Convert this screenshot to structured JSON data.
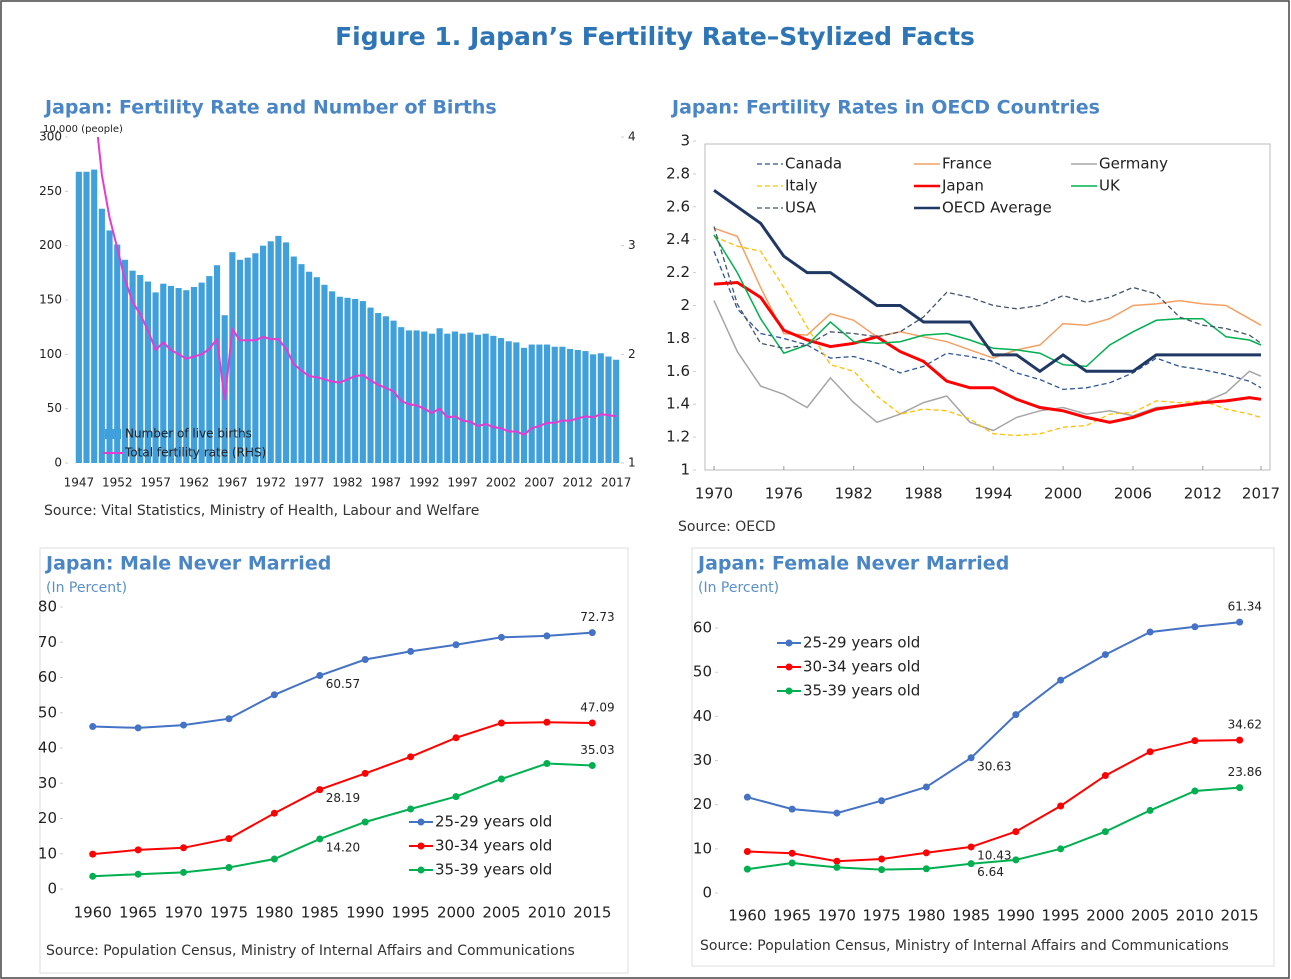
{
  "title": "Figure 1. Japan’s Fertility Rate–Stylized Facts",
  "chart_data": [
    {
      "type": "combo",
      "title": "Japan: Fertility Rate and Number of Births",
      "annotation": "10,000 (people)",
      "categories": [
        "1947",
        null,
        null,
        null,
        null,
        "1952",
        null,
        null,
        null,
        null,
        "1957",
        null,
        null,
        null,
        null,
        "1962",
        null,
        null,
        null,
        null,
        "1967",
        null,
        null,
        null,
        null,
        "1972",
        null,
        null,
        null,
        null,
        "1977",
        null,
        null,
        null,
        null,
        "1982",
        null,
        null,
        null,
        null,
        "1987",
        null,
        null,
        null,
        null,
        "1992",
        null,
        null,
        null,
        null,
        "1997",
        null,
        null,
        null,
        null,
        "2002",
        null,
        null,
        null,
        null,
        "2007",
        null,
        null,
        null,
        null,
        "2012",
        null,
        null,
        null,
        null,
        "2017"
      ],
      "series": [
        {
          "name": "Number of live births",
          "type": "bar",
          "color": "#3fa0dc",
          "values": [
            268,
            268,
            270,
            234,
            214,
            201,
            187,
            177,
            173,
            167,
            157,
            165,
            163,
            161,
            159,
            162,
            166,
            172,
            182,
            136,
            194,
            187,
            189,
            193,
            200,
            204,
            209,
            203,
            190,
            183,
            176,
            171,
            164,
            158,
            153,
            152,
            151,
            149,
            143,
            138,
            135,
            131,
            125,
            122,
            122,
            121,
            119,
            124,
            119,
            121,
            119,
            120,
            118,
            119,
            117,
            115,
            112,
            111,
            106,
            109,
            109,
            109,
            107,
            107,
            105,
            104,
            103,
            100,
            101,
            98,
            95
          ]
        },
        {
          "name": "Total fertility rate (RHS)",
          "type": "line",
          "axis": "y2",
          "color": "#e83ad0",
          "values": [
            4.54,
            4.4,
            4.32,
            3.65,
            3.26,
            2.98,
            2.69,
            2.48,
            2.37,
            2.22,
            2.04,
            2.11,
            2.04,
            2.0,
            1.96,
            1.98,
            2.0,
            2.05,
            2.14,
            1.58,
            2.23,
            2.13,
            2.13,
            2.13,
            2.16,
            2.14,
            2.14,
            2.05,
            1.91,
            1.85,
            1.8,
            1.79,
            1.77,
            1.75,
            1.74,
            1.77,
            1.8,
            1.81,
            1.76,
            1.72,
            1.69,
            1.66,
            1.57,
            1.54,
            1.53,
            1.5,
            1.46,
            1.5,
            1.42,
            1.43,
            1.39,
            1.38,
            1.34,
            1.36,
            1.33,
            1.32,
            1.29,
            1.29,
            1.26,
            1.32,
            1.34,
            1.37,
            1.37,
            1.39,
            1.39,
            1.41,
            1.43,
            1.42,
            1.45,
            1.44,
            1.43
          ]
        }
      ],
      "ylim": [
        0,
        300
      ],
      "yticks": [
        0,
        50,
        100,
        150,
        200,
        250,
        300
      ],
      "y2lim": [
        1,
        4
      ],
      "y2ticks": [
        1,
        2,
        3,
        4
      ],
      "source": "Source: Vital Statistics, Ministry of Health, Labour and Welfare"
    },
    {
      "type": "line",
      "title": "Japan: Fertility Rates in OECD Countries",
      "x": [
        1970,
        1972,
        1974,
        1976,
        1978,
        1980,
        1982,
        1984,
        1986,
        1988,
        1990,
        1992,
        1994,
        1996,
        1998,
        2000,
        2002,
        2004,
        2006,
        2008,
        2010,
        2012,
        2014,
        2016,
        2017
      ],
      "series": [
        {
          "name": "Canada",
          "color": "#2f5597",
          "dash": true,
          "width": 1.3,
          "values": [
            2.33,
            1.98,
            1.83,
            1.8,
            1.76,
            1.68,
            1.69,
            1.65,
            1.59,
            1.63,
            1.71,
            1.69,
            1.66,
            1.59,
            1.55,
            1.49,
            1.5,
            1.53,
            1.59,
            1.68,
            1.63,
            1.61,
            1.58,
            1.54,
            1.5
          ]
        },
        {
          "name": "France",
          "color": "#f4a064",
          "dash": false,
          "width": 1.5,
          "values": [
            2.47,
            2.42,
            2.11,
            1.83,
            1.82,
            1.95,
            1.91,
            1.81,
            1.84,
            1.81,
            1.78,
            1.73,
            1.68,
            1.73,
            1.76,
            1.89,
            1.88,
            1.92,
            2.0,
            2.01,
            2.03,
            2.01,
            2.0,
            1.92,
            1.88
          ]
        },
        {
          "name": "Germany",
          "color": "#a6a6a6",
          "dash": false,
          "width": 1.5,
          "values": [
            2.03,
            1.72,
            1.51,
            1.46,
            1.38,
            1.56,
            1.41,
            1.29,
            1.34,
            1.41,
            1.45,
            1.29,
            1.24,
            1.32,
            1.36,
            1.38,
            1.34,
            1.36,
            1.33,
            1.38,
            1.39,
            1.41,
            1.47,
            1.6,
            1.57
          ]
        },
        {
          "name": "Italy",
          "color": "#ffc000",
          "dash": true,
          "width": 1.3,
          "values": [
            2.42,
            2.36,
            2.33,
            2.11,
            1.87,
            1.64,
            1.6,
            1.45,
            1.34,
            1.37,
            1.36,
            1.31,
            1.22,
            1.21,
            1.22,
            1.26,
            1.27,
            1.34,
            1.35,
            1.42,
            1.41,
            1.42,
            1.37,
            1.34,
            1.32
          ]
        },
        {
          "name": "Japan",
          "color": "#ff0000",
          "dash": false,
          "width": 3,
          "values": [
            2.13,
            2.14,
            2.05,
            1.85,
            1.79,
            1.75,
            1.77,
            1.81,
            1.72,
            1.66,
            1.54,
            1.5,
            1.5,
            1.43,
            1.38,
            1.36,
            1.32,
            1.29,
            1.32,
            1.37,
            1.39,
            1.41,
            1.42,
            1.44,
            1.43
          ]
        },
        {
          "name": "UK",
          "color": "#00b050",
          "dash": false,
          "width": 1.5,
          "values": [
            2.43,
            2.2,
            1.92,
            1.71,
            1.76,
            1.9,
            1.78,
            1.77,
            1.78,
            1.82,
            1.83,
            1.79,
            1.74,
            1.73,
            1.71,
            1.64,
            1.63,
            1.76,
            1.84,
            1.91,
            1.92,
            1.92,
            1.81,
            1.79,
            1.76
          ]
        },
        {
          "name": "USA",
          "color": "#44546a",
          "dash": true,
          "width": 1.3,
          "values": [
            2.48,
            2.01,
            1.77,
            1.74,
            1.76,
            1.84,
            1.83,
            1.81,
            1.84,
            1.93,
            2.08,
            2.05,
            2.0,
            1.98,
            2.0,
            2.06,
            2.02,
            2.05,
            2.11,
            2.07,
            1.93,
            1.88,
            1.86,
            1.82,
            1.77
          ]
        },
        {
          "name": "OECD Average",
          "color": "#1f3864",
          "dash": false,
          "width": 3,
          "values": [
            2.7,
            2.6,
            2.5,
            2.3,
            2.2,
            2.2,
            2.1,
            2.0,
            2.0,
            1.9,
            1.9,
            1.9,
            1.7,
            1.7,
            1.6,
            1.7,
            1.6,
            1.6,
            1.6,
            1.7,
            1.7,
            1.7,
            1.7,
            1.7,
            1.7
          ]
        }
      ],
      "xlim": [
        1970,
        2017
      ],
      "xticks": [
        1970,
        1976,
        1982,
        1988,
        1994,
        2000,
        2006,
        2012,
        2017
      ],
      "ylim": [
        1,
        3
      ],
      "yticks": [
        1,
        1.2,
        1.4,
        1.6,
        1.8,
        2,
        2.2,
        2.4,
        2.6,
        2.8,
        3
      ],
      "source": "Source: OECD"
    },
    {
      "type": "line",
      "title": "Japan: Male Never Married",
      "subtitle": "(In Percent)",
      "categories": [
        "1960",
        "1965",
        "1970",
        "1975",
        "1980",
        "1985",
        "1990",
        "1995",
        "2000",
        "2005",
        "2010",
        "2015"
      ],
      "series": [
        {
          "name": "25-29 years old",
          "color": "#4472c4",
          "values": [
            46.1,
            45.7,
            46.5,
            48.3,
            55.1,
            60.57,
            65.1,
            67.4,
            69.3,
            71.4,
            71.8,
            72.73
          ],
          "value_labels": [
            null,
            null,
            null,
            null,
            null,
            "60.57",
            null,
            null,
            null,
            null,
            null,
            "72.73"
          ]
        },
        {
          "name": "30-34 years old",
          "color": "#ff0000",
          "values": [
            9.9,
            11.1,
            11.7,
            14.3,
            21.5,
            28.19,
            32.8,
            37.5,
            42.9,
            47.1,
            47.3,
            47.09
          ],
          "value_labels": [
            null,
            null,
            null,
            null,
            null,
            "28.19",
            null,
            null,
            null,
            null,
            null,
            "47.09"
          ]
        },
        {
          "name": "35-39 years old",
          "color": "#00b050",
          "values": [
            3.6,
            4.2,
            4.7,
            6.1,
            8.5,
            14.2,
            19.0,
            22.7,
            26.2,
            31.2,
            35.6,
            35.03
          ],
          "value_labels": [
            null,
            null,
            null,
            null,
            null,
            "14.20",
            null,
            null,
            null,
            null,
            null,
            "35.03"
          ]
        }
      ],
      "ylim": [
        0,
        80
      ],
      "yticks": [
        0,
        10,
        20,
        30,
        40,
        50,
        60,
        70,
        80
      ],
      "source": "Source: Population Census, Ministry of Internal Affairs and Communications"
    },
    {
      "type": "line",
      "title": "Japan: Female Never Married",
      "subtitle": "(In Percent)",
      "categories": [
        "1960",
        "1965",
        "1970",
        "1975",
        "1980",
        "1985",
        "1990",
        "1995",
        "2000",
        "2005",
        "2010",
        "2015"
      ],
      "series": [
        {
          "name": "25-29 years old",
          "color": "#4472c4",
          "values": [
            21.7,
            19.0,
            18.1,
            20.9,
            24.0,
            30.63,
            40.4,
            48.2,
            54.0,
            59.1,
            60.3,
            61.34
          ],
          "value_labels": [
            null,
            null,
            null,
            null,
            null,
            "30.63",
            null,
            null,
            null,
            null,
            null,
            "61.34"
          ]
        },
        {
          "name": "30-34 years old",
          "color": "#ff0000",
          "values": [
            9.4,
            9.0,
            7.2,
            7.7,
            9.1,
            10.43,
            13.9,
            19.7,
            26.6,
            32.0,
            34.5,
            34.62
          ],
          "value_labels": [
            null,
            null,
            null,
            null,
            null,
            "10.43",
            null,
            null,
            null,
            null,
            null,
            "34.62"
          ]
        },
        {
          "name": "35-39 years old",
          "color": "#00b050",
          "values": [
            5.4,
            6.8,
            5.8,
            5.3,
            5.5,
            6.64,
            7.5,
            10.0,
            13.9,
            18.7,
            23.1,
            23.86
          ],
          "value_labels": [
            null,
            null,
            null,
            null,
            null,
            "6.64",
            null,
            null,
            null,
            null,
            null,
            "23.86"
          ]
        }
      ],
      "ylim": [
        0,
        65
      ],
      "yticks": [
        0,
        10,
        20,
        30,
        40,
        50,
        60
      ],
      "source": "Source: Population Census, Ministry of Internal Affairs and Communications"
    }
  ]
}
